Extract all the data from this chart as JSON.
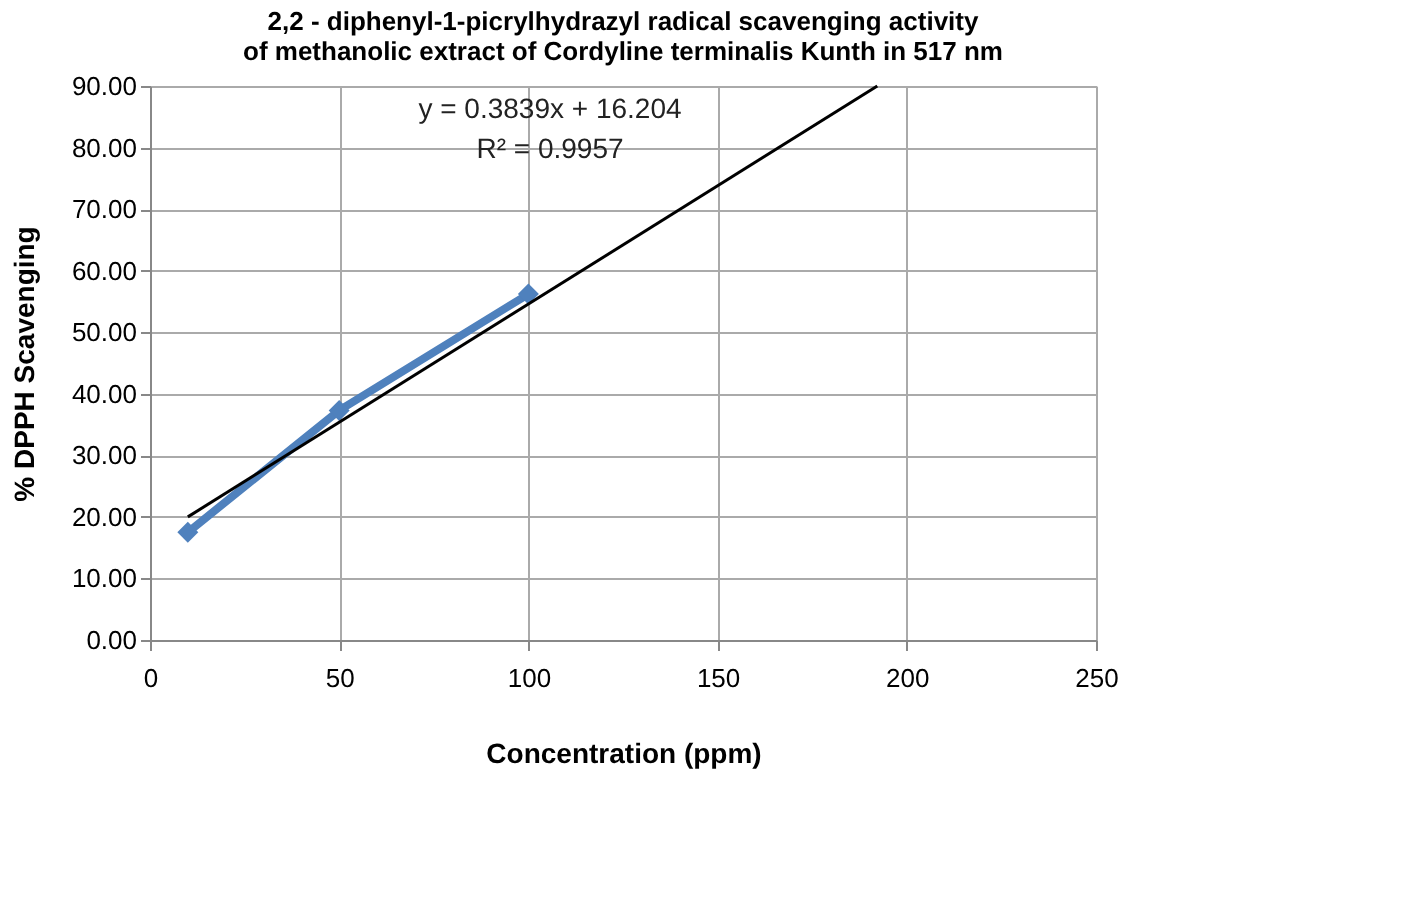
{
  "chart_data": {
    "type": "line",
    "title": "2,2 - diphenyl-1-picrylhydrazyl radical scavenging activity of methanolic extract of Cordyline terminalis Kunth in 517 nm",
    "xlabel": "Concentration (ppm)",
    "ylabel": "% DPPH Scavenging",
    "series": [
      {
        "color": "#4f81bd",
        "x": [
          10,
          50,
          100
        ],
        "values": [
          17.5,
          37.3,
          56.2
        ],
        "marker": "diamond"
      },
      {
        "color": "#000000",
        "x": [
          10,
          192.2
        ],
        "values": [
          20,
          90
        ],
        "marker": "none"
      }
    ],
    "annotations": [
      "y = 0.3839x + 16.204",
      "R² = 0.9957"
    ],
    "xlim": [
      0,
      250
    ],
    "xticks": [
      0,
      50,
      100,
      150,
      200,
      250
    ],
    "ylim": [
      0,
      90
    ],
    "yticks": [
      {
        "value": 0,
        "label": "0.00"
      },
      {
        "value": 10,
        "label": "10.00"
      },
      {
        "value": 20,
        "label": "20.00"
      },
      {
        "value": 30,
        "label": "30.00"
      },
      {
        "value": 40,
        "label": "40.00"
      },
      {
        "value": 50,
        "label": "50.00"
      },
      {
        "value": 60,
        "label": "60.00"
      },
      {
        "value": 70,
        "label": "70.00"
      },
      {
        "value": 80,
        "label": "80.00"
      },
      {
        "value": 90,
        "label": "90.00"
      }
    ],
    "grid": true
  }
}
